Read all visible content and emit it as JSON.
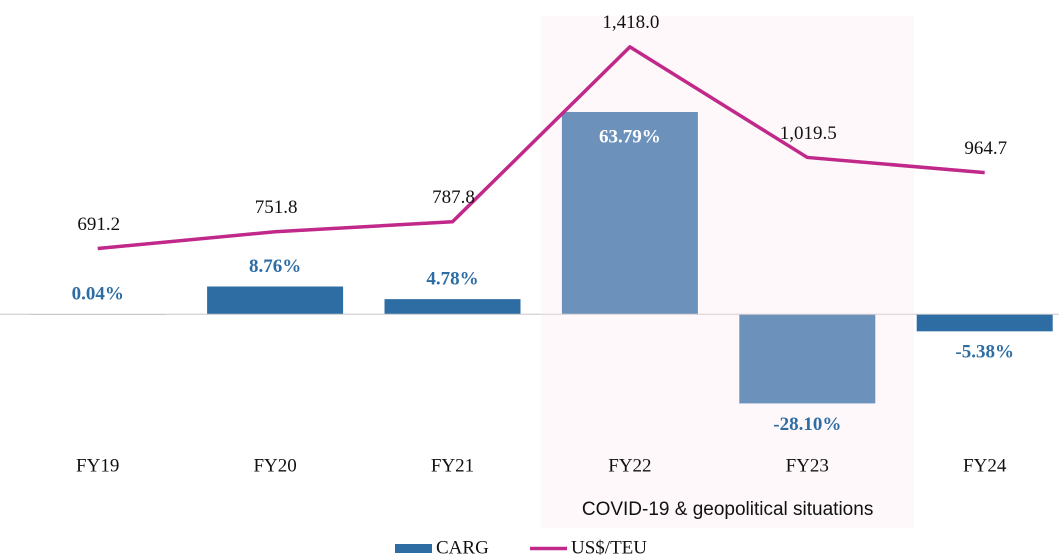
{
  "chart_data": {
    "type": "bar-line",
    "categories": [
      "FY19",
      "FY20",
      "FY21",
      "FY22",
      "FY23",
      "FY24"
    ],
    "series": [
      {
        "name": "CARG",
        "type": "bar",
        "color": "#2e6da4",
        "values": [
          0.04,
          8.76,
          4.78,
          63.79,
          -28.1,
          -5.38
        ],
        "value_labels": [
          "0.04%",
          "8.76%",
          "4.78%",
          "63.79%",
          "-28.10%",
          "-5.38%"
        ]
      },
      {
        "name": "US$/TEU",
        "type": "line",
        "axis": "y2",
        "color": "#c0288a",
        "values": [
          691.2,
          751.8,
          787.8,
          1418.0,
          1019.5,
          964.7
        ],
        "value_labels": [
          "691.2",
          "751.8",
          "787.8",
          "1,418.0",
          "1,019.5",
          "964.7"
        ]
      }
    ],
    "ylim": [
      -45,
      95
    ],
    "y2lim": [
      -60,
      1540
    ],
    "highlight": {
      "label": "COVID-19 & geopolitical situations",
      "categories": [
        "FY22",
        "FY23"
      ],
      "color": "#fde8f3"
    },
    "legend": "bottom"
  }
}
